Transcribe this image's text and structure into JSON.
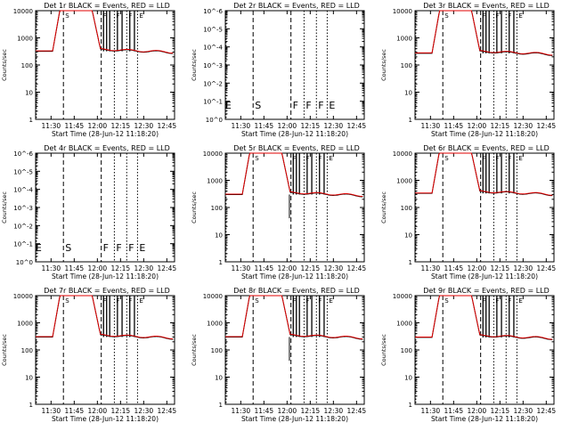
{
  "colors": {
    "events": "#000000",
    "lld": "#e00000",
    "background": "#ffffff"
  },
  "chart_data": [
    {
      "type": "line",
      "title": "Det 1r BLACK = Events, RED = LLD",
      "xlabel": "Start Time (28-Jun-12 11:18:20)",
      "ylabel": "Counts/sec",
      "ytick_labels": [
        "1",
        "10",
        "100",
        "1000",
        "10000"
      ],
      "xtick_labels": [
        "11:30",
        "11:45",
        "12:00",
        "12:15",
        "12:30",
        "12:45"
      ],
      "markers": [
        "S",
        "F",
        "F",
        "F",
        "E"
      ],
      "has_data": true,
      "baseline": {
        "events": 320,
        "lld": 330
      },
      "dip": false
    },
    {
      "type": "line",
      "title": "Det 2r BLACK = Events, RED = LLD",
      "xlabel": "Start Time (28-Jun-12 11:18:20)",
      "ylabel": "Counts/sec",
      "ytick_labels": [
        "10^0",
        "10^-1",
        "10^-2",
        "10^-3",
        "10^-4",
        "10^-5",
        "10^-6"
      ],
      "xtick_labels": [
        "11:30",
        "11:45",
        "12:00",
        "12:15",
        "12:30",
        "12:45"
      ],
      "markers": [
        "E",
        "S",
        "F",
        "F",
        "F",
        "E"
      ],
      "has_data": false
    },
    {
      "type": "line",
      "title": "Det 3r BLACK = Events, RED = LLD",
      "xlabel": "Start Time (28-Jun-12 11:18:20)",
      "ylabel": "Counts/sec",
      "ytick_labels": [
        "1",
        "10",
        "100",
        "1000",
        "10000"
      ],
      "xtick_labels": [
        "11:30",
        "11:45",
        "12:00",
        "12:15",
        "12:30",
        "12:45"
      ],
      "markers": [
        "S",
        "F",
        "F",
        "F",
        "E"
      ],
      "has_data": true,
      "baseline": {
        "events": 270,
        "lld": 280
      },
      "dip": false
    },
    {
      "type": "line",
      "title": "Det 4r BLACK = Events, RED = LLD",
      "xlabel": "Start Time (28-Jun-12 11:18:20)",
      "ylabel": "Counts/sec",
      "ytick_labels": [
        "10^0",
        "10^-1",
        "10^-2",
        "10^-3",
        "10^-4",
        "10^-5",
        "10^-6"
      ],
      "xtick_labels": [
        "11:30",
        "11:45",
        "12:00",
        "12:15",
        "12:30",
        "12:45"
      ],
      "markers": [
        "E",
        "S",
        "F",
        "F",
        "F",
        "E"
      ],
      "has_data": false
    },
    {
      "type": "line",
      "title": "Det 5r BLACK = Events, RED = LLD",
      "xlabel": "Start Time (28-Jun-12 11:18:20)",
      "ylabel": "Counts/sec",
      "ytick_labels": [
        "1",
        "10",
        "100",
        "1000",
        "10000"
      ],
      "xtick_labels": [
        "11:30",
        "11:45",
        "12:00",
        "12:15",
        "12:30",
        "12:45"
      ],
      "markers": [
        "S",
        "F",
        "F",
        "F",
        "E"
      ],
      "has_data": true,
      "baseline": {
        "events": 300,
        "lld": 310
      },
      "dip": true
    },
    {
      "type": "line",
      "title": "Det 6r BLACK = Events, RED = LLD",
      "xlabel": "Start Time (28-Jun-12 11:18:20)",
      "ylabel": "Counts/sec",
      "ytick_labels": [
        "1",
        "10",
        "100",
        "1000",
        "10000"
      ],
      "xtick_labels": [
        "11:30",
        "11:45",
        "12:00",
        "12:15",
        "12:30",
        "12:45"
      ],
      "markers": [
        "S",
        "F",
        "F",
        "F",
        "E"
      ],
      "has_data": true,
      "baseline": {
        "events": 330,
        "lld": 340
      },
      "dip": false
    },
    {
      "type": "line",
      "title": "Det 7r BLACK = Events, RED = LLD",
      "xlabel": "Start Time (28-Jun-12 11:18:20)",
      "ylabel": "Counts/sec",
      "ytick_labels": [
        "1",
        "10",
        "100",
        "1000",
        "10000"
      ],
      "xtick_labels": [
        "11:30",
        "11:45",
        "12:00",
        "12:15",
        "12:30",
        "12:45"
      ],
      "markers": [
        "S",
        "F",
        "F",
        "F",
        "E"
      ],
      "has_data": true,
      "baseline": {
        "events": 300,
        "lld": 310
      },
      "dip": false
    },
    {
      "type": "line",
      "title": "Det 8r BLACK = Events, RED = LLD",
      "xlabel": "Start Time (28-Jun-12 11:18:20)",
      "ylabel": "Counts/sec",
      "ytick_labels": [
        "1",
        "10",
        "100",
        "1000",
        "10000"
      ],
      "xtick_labels": [
        "11:30",
        "11:45",
        "12:00",
        "12:15",
        "12:30",
        "12:45"
      ],
      "markers": [
        "S",
        "F",
        "F",
        "F",
        "E"
      ],
      "has_data": true,
      "baseline": {
        "events": 300,
        "lld": 310
      },
      "dip": true
    },
    {
      "type": "line",
      "title": "Det 9r BLACK = Events, RED = LLD",
      "xlabel": "Start Time (28-Jun-12 11:18:20)",
      "ylabel": "Counts/sec",
      "ytick_labels": [
        "1",
        "10",
        "100",
        "1000",
        "10000"
      ],
      "xtick_labels": [
        "11:30",
        "11:45",
        "12:00",
        "12:15",
        "12:30",
        "12:45"
      ],
      "markers": [
        "S",
        "F",
        "F",
        "F",
        "E"
      ],
      "has_data": true,
      "baseline": {
        "events": 290,
        "lld": 300
      },
      "dip": false
    }
  ]
}
